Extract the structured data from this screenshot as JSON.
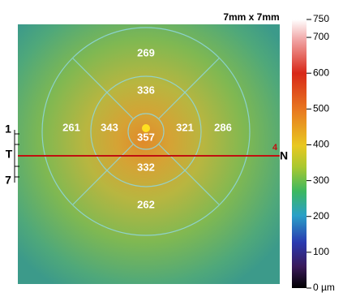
{
  "header": {
    "scan_size": "7mm x 7mm"
  },
  "grid": {
    "center": 357,
    "inner": {
      "superior": 336,
      "temporal": 343,
      "nasal": 321,
      "inferior": 332
    },
    "outer": {
      "superior": 269,
      "temporal": 261,
      "nasal": 286,
      "inferior": 262
    }
  },
  "scan_line": {
    "left_label": "T",
    "right_label": "N",
    "marker": "4",
    "upper_tick": "1",
    "lower_tick": "7"
  },
  "colorbar": {
    "ticks": [
      {
        "value": 0,
        "label": "0 µm"
      },
      100,
      200,
      300,
      400,
      500,
      600,
      700,
      750
    ]
  }
}
